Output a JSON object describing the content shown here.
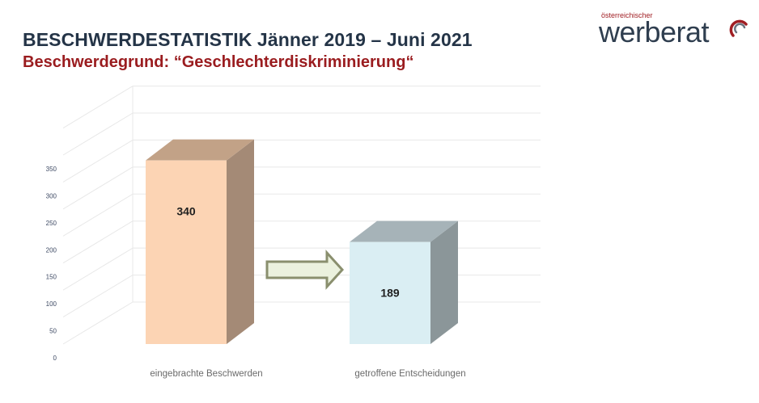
{
  "header": {
    "title": "BESCHWERDESTATISTIK Jänner 2019 – Juni 2021",
    "subtitle": "Beschwerdegrund: “Geschlechterdiskriminierung“"
  },
  "logo": {
    "small_text": "österreichischer",
    "big_text": "werberat",
    "icon": "swirl-logo-icon",
    "colors": {
      "text": "#2f3e4f",
      "accent": "#a01e23"
    }
  },
  "chart_data": {
    "type": "bar",
    "categories": [
      "eingebrachte Beschwerden",
      "getroffene Entscheidungen"
    ],
    "values": [
      340,
      189
    ],
    "data_labels": [
      "340",
      "189"
    ],
    "ylim": [
      0,
      350
    ],
    "yticks": [
      0,
      50,
      100,
      150,
      200,
      250,
      300,
      350
    ],
    "grid": true,
    "style": "3d",
    "annotation": "arrow-right",
    "colors": {
      "bar1_front": "#fcd4b4",
      "bar1_top": "#c2a287",
      "bar1_side": "#a48a76",
      "bar2_front": "#daeef3",
      "bar2_top": "#a6b3b8",
      "bar2_side": "#8b9699",
      "arrow_fill": "#ebf1de",
      "arrow_stroke": "#8a8f6e",
      "grid": "#e8e8e8",
      "tick": "#3e4a64",
      "category": "#6a6a6a"
    }
  }
}
